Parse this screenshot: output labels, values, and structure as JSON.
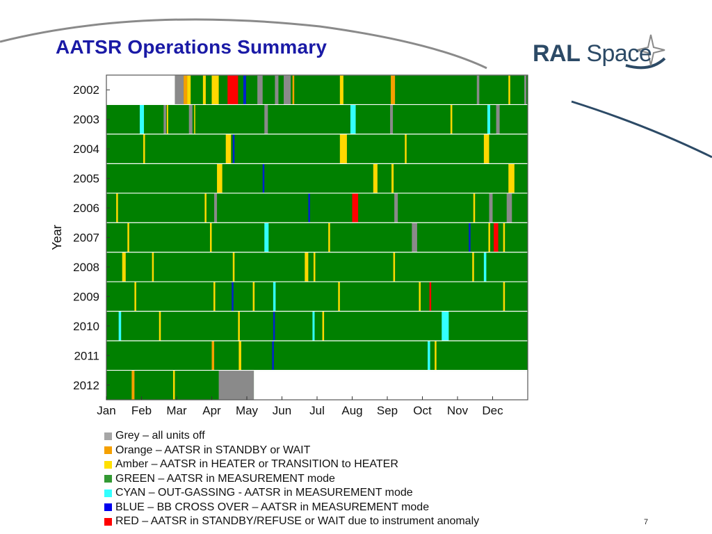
{
  "title": "AATSR Operations Summary",
  "logo": {
    "bold": "RAL",
    "regular": " Space"
  },
  "page_number": "7",
  "colors": {
    "green": "#008000",
    "grey": "#8a8a8a",
    "orange": "#f5a000",
    "amber": "#ffd800",
    "cyan": "#33ffff",
    "blue": "#0022cc",
    "red": "#ff0000",
    "none": "#ffffff"
  },
  "legend": [
    {
      "color_key": "grey",
      "swatch": "#a6a6a6",
      "label": "Grey – all units off"
    },
    {
      "color_key": "orange",
      "swatch": "#f5a000",
      "label": "Orange – AATSR in STANDBY or WAIT"
    },
    {
      "color_key": "amber",
      "swatch": "#ffe000",
      "label": "Amber – AATSR in HEATER or TRANSITION to HEATER"
    },
    {
      "color_key": "green",
      "swatch": "#339933",
      "label": "GREEN – AATSR in MEASUREMENT mode"
    },
    {
      "color_key": "cyan",
      "swatch": "#33ffff",
      "label": "CYAN – OUT-GASSING - AATSR in MEASUREMENT mode"
    },
    {
      "color_key": "blue",
      "swatch": "#0000ee",
      "label": "BLUE – BB CROSS OVER – AATSR in MEASUREMENT mode"
    },
    {
      "color_key": "red",
      "swatch": "#ff0000",
      "label": "RED – AATSR in STANDBY/REFUSE or WAIT due to instrument anomaly"
    }
  ],
  "chart_data": {
    "type": "heatmap",
    "title": "",
    "ylabel": "Year",
    "xlabel": "",
    "x_unit": "month of year (0 = start of Jan, 12 = end of Dec)",
    "xlim": [
      0,
      12
    ],
    "x_ticks": [
      {
        "label": "Jan",
        "value": 0
      },
      {
        "label": "Feb",
        "value": 1
      },
      {
        "label": "Mar",
        "value": 2
      },
      {
        "label": "Apr",
        "value": 3
      },
      {
        "label": "May",
        "value": 4
      },
      {
        "label": "Jun",
        "value": 5
      },
      {
        "label": "Jul",
        "value": 6
      },
      {
        "label": "Aug",
        "value": 7
      },
      {
        "label": "Sep",
        "value": 8
      },
      {
        "label": "Oct",
        "value": 9
      },
      {
        "label": "Nov",
        "value": 10
      },
      {
        "label": "Dec",
        "value": 11
      }
    ],
    "rows": [
      {
        "year": "2002",
        "segments": [
          {
            "start": 0,
            "end": 1.95,
            "state": "none"
          },
          {
            "start": 1.95,
            "end": 2.2,
            "state": "grey"
          },
          {
            "start": 2.2,
            "end": 2.3,
            "state": "orange"
          },
          {
            "start": 2.3,
            "end": 2.4,
            "state": "amber"
          },
          {
            "start": 2.75,
            "end": 2.83,
            "state": "amber"
          },
          {
            "start": 3.0,
            "end": 3.2,
            "state": "amber"
          },
          {
            "start": 3.45,
            "end": 3.75,
            "state": "red"
          },
          {
            "start": 3.9,
            "end": 3.98,
            "state": "blue"
          },
          {
            "start": 4.3,
            "end": 4.45,
            "state": "grey"
          },
          {
            "start": 4.8,
            "end": 4.9,
            "state": "grey"
          },
          {
            "start": 5.05,
            "end": 5.25,
            "state": "grey"
          },
          {
            "start": 5.3,
            "end": 5.35,
            "state": "orange"
          },
          {
            "start": 6.65,
            "end": 6.75,
            "state": "amber"
          },
          {
            "start": 8.1,
            "end": 8.22,
            "state": "orange"
          },
          {
            "start": 10.55,
            "end": 10.62,
            "state": "grey"
          },
          {
            "start": 11.45,
            "end": 11.5,
            "state": "amber"
          },
          {
            "start": 11.9,
            "end": 11.96,
            "state": "grey"
          }
        ]
      },
      {
        "year": "2003",
        "segments": [
          {
            "start": 0.95,
            "end": 1.07,
            "state": "cyan"
          },
          {
            "start": 1.63,
            "end": 1.7,
            "state": "grey"
          },
          {
            "start": 1.72,
            "end": 1.76,
            "state": "amber"
          },
          {
            "start": 2.35,
            "end": 2.45,
            "state": "grey"
          },
          {
            "start": 2.5,
            "end": 2.53,
            "state": "amber"
          },
          {
            "start": 4.5,
            "end": 4.6,
            "state": "grey"
          },
          {
            "start": 6.95,
            "end": 7.1,
            "state": "cyan"
          },
          {
            "start": 8.08,
            "end": 8.16,
            "state": "grey"
          },
          {
            "start": 9.8,
            "end": 9.85,
            "state": "amber"
          },
          {
            "start": 10.85,
            "end": 10.93,
            "state": "cyan"
          },
          {
            "start": 11.1,
            "end": 11.2,
            "state": "grey"
          }
        ]
      },
      {
        "year": "2004",
        "segments": [
          {
            "start": 1.05,
            "end": 1.1,
            "state": "amber"
          },
          {
            "start": 3.4,
            "end": 3.55,
            "state": "amber"
          },
          {
            "start": 3.6,
            "end": 3.65,
            "state": "blue"
          },
          {
            "start": 6.65,
            "end": 6.85,
            "state": "amber"
          },
          {
            "start": 8.5,
            "end": 8.55,
            "state": "amber"
          },
          {
            "start": 10.75,
            "end": 10.9,
            "state": "amber"
          }
        ]
      },
      {
        "year": "2005",
        "segments": [
          {
            "start": 3.15,
            "end": 3.3,
            "state": "amber"
          },
          {
            "start": 4.45,
            "end": 4.5,
            "state": "blue"
          },
          {
            "start": 7.6,
            "end": 7.72,
            "state": "amber"
          },
          {
            "start": 8.12,
            "end": 8.18,
            "state": "amber"
          },
          {
            "start": 11.45,
            "end": 11.62,
            "state": "amber"
          }
        ]
      },
      {
        "year": "2006",
        "segments": [
          {
            "start": 0.28,
            "end": 0.33,
            "state": "amber"
          },
          {
            "start": 2.8,
            "end": 2.85,
            "state": "amber"
          },
          {
            "start": 3.07,
            "end": 3.15,
            "state": "grey"
          },
          {
            "start": 5.75,
            "end": 5.8,
            "state": "blue"
          },
          {
            "start": 7.0,
            "end": 7.17,
            "state": "red"
          },
          {
            "start": 8.2,
            "end": 8.3,
            "state": "grey"
          },
          {
            "start": 10.45,
            "end": 10.5,
            "state": "amber"
          },
          {
            "start": 10.9,
            "end": 11.0,
            "state": "grey"
          },
          {
            "start": 11.4,
            "end": 11.55,
            "state": "grey"
          }
        ]
      },
      {
        "year": "2007",
        "segments": [
          {
            "start": 0.6,
            "end": 0.65,
            "state": "amber"
          },
          {
            "start": 2.95,
            "end": 3.0,
            "state": "amber"
          },
          {
            "start": 4.5,
            "end": 4.62,
            "state": "cyan"
          },
          {
            "start": 6.32,
            "end": 6.37,
            "state": "amber"
          },
          {
            "start": 8.7,
            "end": 8.85,
            "state": "grey"
          },
          {
            "start": 10.32,
            "end": 10.37,
            "state": "blue"
          },
          {
            "start": 10.88,
            "end": 10.93,
            "state": "amber"
          },
          {
            "start": 11.03,
            "end": 11.16,
            "state": "red"
          },
          {
            "start": 11.3,
            "end": 11.35,
            "state": "amber"
          }
        ]
      },
      {
        "year": "2008",
        "segments": [
          {
            "start": 0.45,
            "end": 0.55,
            "state": "amber"
          },
          {
            "start": 1.3,
            "end": 1.35,
            "state": "amber"
          },
          {
            "start": 3.6,
            "end": 3.65,
            "state": "amber"
          },
          {
            "start": 5.65,
            "end": 5.75,
            "state": "amber"
          },
          {
            "start": 5.9,
            "end": 5.95,
            "state": "amber"
          },
          {
            "start": 8.17,
            "end": 8.22,
            "state": "amber"
          },
          {
            "start": 10.42,
            "end": 10.47,
            "state": "amber"
          },
          {
            "start": 10.75,
            "end": 10.82,
            "state": "cyan"
          }
        ]
      },
      {
        "year": "2009",
        "segments": [
          {
            "start": 0.8,
            "end": 0.85,
            "state": "amber"
          },
          {
            "start": 3.05,
            "end": 3.1,
            "state": "amber"
          },
          {
            "start": 3.57,
            "end": 3.62,
            "state": "blue"
          },
          {
            "start": 4.17,
            "end": 4.22,
            "state": "amber"
          },
          {
            "start": 4.75,
            "end": 4.82,
            "state": "cyan"
          },
          {
            "start": 6.6,
            "end": 6.65,
            "state": "amber"
          },
          {
            "start": 8.9,
            "end": 8.95,
            "state": "amber"
          },
          {
            "start": 9.2,
            "end": 9.25,
            "state": "red"
          },
          {
            "start": 11.3,
            "end": 11.35,
            "state": "amber"
          }
        ]
      },
      {
        "year": "2010",
        "segments": [
          {
            "start": 0.35,
            "end": 0.42,
            "state": "cyan"
          },
          {
            "start": 1.5,
            "end": 1.55,
            "state": "amber"
          },
          {
            "start": 3.75,
            "end": 3.8,
            "state": "amber"
          },
          {
            "start": 4.75,
            "end": 4.8,
            "state": "blue"
          },
          {
            "start": 5.87,
            "end": 5.93,
            "state": "cyan"
          },
          {
            "start": 6.15,
            "end": 6.2,
            "state": "amber"
          },
          {
            "start": 9.55,
            "end": 9.75,
            "state": "cyan"
          }
        ]
      },
      {
        "year": "2011",
        "segments": [
          {
            "start": 3.0,
            "end": 3.07,
            "state": "orange"
          },
          {
            "start": 3.77,
            "end": 3.84,
            "state": "amber"
          },
          {
            "start": 4.72,
            "end": 4.77,
            "state": "blue"
          },
          {
            "start": 9.15,
            "end": 9.22,
            "state": "cyan"
          },
          {
            "start": 9.35,
            "end": 9.4,
            "state": "amber"
          }
        ]
      },
      {
        "year": "2012",
        "segments": [
          {
            "start": 0.72,
            "end": 0.8,
            "state": "orange"
          },
          {
            "start": 1.9,
            "end": 1.95,
            "state": "amber"
          },
          {
            "start": 3.2,
            "end": 4.2,
            "state": "grey"
          },
          {
            "start": 4.2,
            "end": 12,
            "state": "none"
          }
        ]
      }
    ]
  }
}
